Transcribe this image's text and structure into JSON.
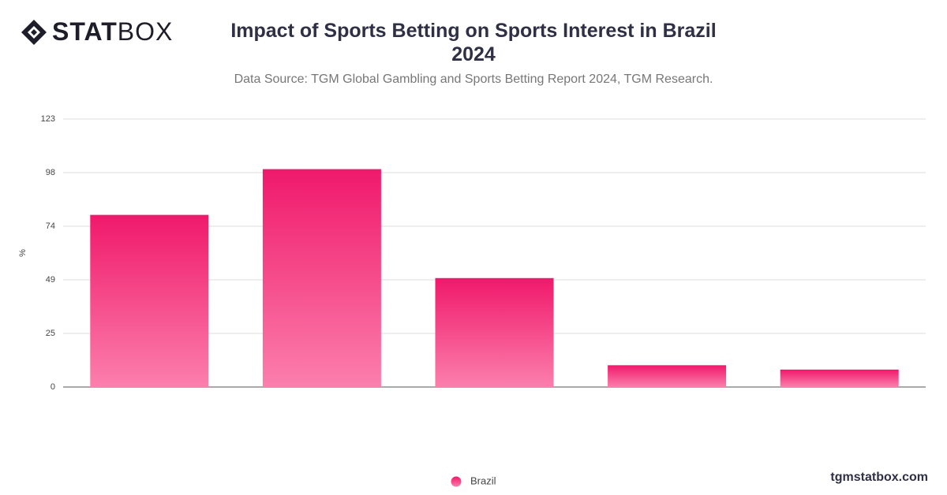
{
  "logo": {
    "bold": "STAT",
    "light": "BOX"
  },
  "footer": "tgmstatbox.com",
  "chart_data": {
    "type": "bar",
    "title": "Impact of Sports Betting on Sports Interest in Brazil 2024",
    "subtitle": "Data Source: TGM Global Gambling and Sports Betting Report 2024, TGM Research.",
    "y_label": "%",
    "categories": [
      null,
      null,
      null,
      null,
      null
    ],
    "series": [
      {
        "name": "Brazil",
        "color": "#f0196b",
        "gradient_end": "#fb7fac",
        "values": [
          79,
          100,
          50,
          10,
          8
        ]
      }
    ],
    "ylim": [
      0,
      123
    ],
    "yticks": [
      0,
      {
        "value": 24.6,
        "label": "25"
      },
      {
        "value": 49.2,
        "label": "49"
      },
      {
        "value": 73.8,
        "label": "74"
      },
      {
        "value": 98.4,
        "label": "98"
      },
      123
    ],
    "grid": true,
    "legend": "bottom"
  }
}
